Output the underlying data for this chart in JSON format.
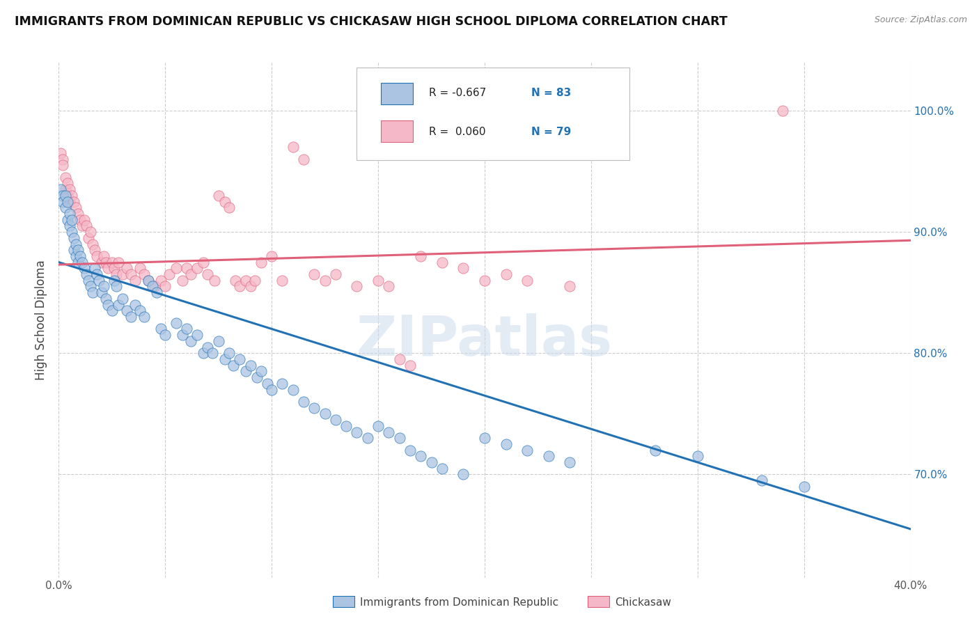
{
  "title": "IMMIGRANTS FROM DOMINICAN REPUBLIC VS CHICKASAW HIGH SCHOOL DIPLOMA CORRELATION CHART",
  "source": "Source: ZipAtlas.com",
  "ylabel": "High School Diploma",
  "ytick_labels": [
    "100.0%",
    "90.0%",
    "80.0%",
    "70.0%"
  ],
  "ytick_values": [
    1.0,
    0.9,
    0.8,
    0.7
  ],
  "xlim": [
    0.0,
    0.4
  ],
  "ylim": [
    0.615,
    1.04
  ],
  "blue_color": "#aac4e2",
  "pink_color": "#f5b8c8",
  "blue_line_color": "#2171b5",
  "pink_line_color": "#e0607a",
  "watermark": "ZIPatlas",
  "legend_label_blue": "Immigrants from Dominican Republic",
  "legend_label_pink": "Chickasaw",
  "blue_scatter": [
    [
      0.001,
      0.935
    ],
    [
      0.002,
      0.93
    ],
    [
      0.002,
      0.925
    ],
    [
      0.003,
      0.93
    ],
    [
      0.003,
      0.92
    ],
    [
      0.004,
      0.925
    ],
    [
      0.004,
      0.91
    ],
    [
      0.005,
      0.915
    ],
    [
      0.005,
      0.905
    ],
    [
      0.006,
      0.91
    ],
    [
      0.006,
      0.9
    ],
    [
      0.007,
      0.895
    ],
    [
      0.007,
      0.885
    ],
    [
      0.008,
      0.89
    ],
    [
      0.008,
      0.88
    ],
    [
      0.009,
      0.885
    ],
    [
      0.009,
      0.875
    ],
    [
      0.01,
      0.88
    ],
    [
      0.011,
      0.875
    ],
    [
      0.012,
      0.87
    ],
    [
      0.013,
      0.865
    ],
    [
      0.014,
      0.86
    ],
    [
      0.015,
      0.855
    ],
    [
      0.016,
      0.85
    ],
    [
      0.017,
      0.87
    ],
    [
      0.018,
      0.865
    ],
    [
      0.019,
      0.86
    ],
    [
      0.02,
      0.85
    ],
    [
      0.021,
      0.855
    ],
    [
      0.022,
      0.845
    ],
    [
      0.023,
      0.84
    ],
    [
      0.025,
      0.835
    ],
    [
      0.026,
      0.86
    ],
    [
      0.027,
      0.855
    ],
    [
      0.028,
      0.84
    ],
    [
      0.03,
      0.845
    ],
    [
      0.032,
      0.835
    ],
    [
      0.034,
      0.83
    ],
    [
      0.036,
      0.84
    ],
    [
      0.038,
      0.835
    ],
    [
      0.04,
      0.83
    ],
    [
      0.042,
      0.86
    ],
    [
      0.044,
      0.855
    ],
    [
      0.046,
      0.85
    ],
    [
      0.048,
      0.82
    ],
    [
      0.05,
      0.815
    ],
    [
      0.055,
      0.825
    ],
    [
      0.058,
      0.815
    ],
    [
      0.06,
      0.82
    ],
    [
      0.062,
      0.81
    ],
    [
      0.065,
      0.815
    ],
    [
      0.068,
      0.8
    ],
    [
      0.07,
      0.805
    ],
    [
      0.072,
      0.8
    ],
    [
      0.075,
      0.81
    ],
    [
      0.078,
      0.795
    ],
    [
      0.08,
      0.8
    ],
    [
      0.082,
      0.79
    ],
    [
      0.085,
      0.795
    ],
    [
      0.088,
      0.785
    ],
    [
      0.09,
      0.79
    ],
    [
      0.093,
      0.78
    ],
    [
      0.095,
      0.785
    ],
    [
      0.098,
      0.775
    ],
    [
      0.1,
      0.77
    ],
    [
      0.105,
      0.775
    ],
    [
      0.11,
      0.77
    ],
    [
      0.115,
      0.76
    ],
    [
      0.12,
      0.755
    ],
    [
      0.125,
      0.75
    ],
    [
      0.13,
      0.745
    ],
    [
      0.135,
      0.74
    ],
    [
      0.14,
      0.735
    ],
    [
      0.145,
      0.73
    ],
    [
      0.15,
      0.74
    ],
    [
      0.155,
      0.735
    ],
    [
      0.16,
      0.73
    ],
    [
      0.165,
      0.72
    ],
    [
      0.17,
      0.715
    ],
    [
      0.175,
      0.71
    ],
    [
      0.18,
      0.705
    ],
    [
      0.19,
      0.7
    ],
    [
      0.2,
      0.73
    ],
    [
      0.21,
      0.725
    ],
    [
      0.22,
      0.72
    ],
    [
      0.23,
      0.715
    ],
    [
      0.24,
      0.71
    ],
    [
      0.28,
      0.72
    ],
    [
      0.3,
      0.715
    ],
    [
      0.33,
      0.695
    ],
    [
      0.35,
      0.69
    ]
  ],
  "pink_scatter": [
    [
      0.001,
      0.965
    ],
    [
      0.002,
      0.96
    ],
    [
      0.002,
      0.955
    ],
    [
      0.003,
      0.945
    ],
    [
      0.003,
      0.935
    ],
    [
      0.004,
      0.94
    ],
    [
      0.004,
      0.93
    ],
    [
      0.005,
      0.935
    ],
    [
      0.005,
      0.925
    ],
    [
      0.006,
      0.93
    ],
    [
      0.007,
      0.925
    ],
    [
      0.008,
      0.92
    ],
    [
      0.009,
      0.915
    ],
    [
      0.01,
      0.91
    ],
    [
      0.011,
      0.905
    ],
    [
      0.012,
      0.91
    ],
    [
      0.013,
      0.905
    ],
    [
      0.014,
      0.895
    ],
    [
      0.015,
      0.9
    ],
    [
      0.016,
      0.89
    ],
    [
      0.017,
      0.885
    ],
    [
      0.018,
      0.88
    ],
    [
      0.02,
      0.875
    ],
    [
      0.021,
      0.88
    ],
    [
      0.022,
      0.875
    ],
    [
      0.023,
      0.87
    ],
    [
      0.025,
      0.875
    ],
    [
      0.026,
      0.87
    ],
    [
      0.027,
      0.865
    ],
    [
      0.028,
      0.875
    ],
    [
      0.03,
      0.865
    ],
    [
      0.032,
      0.87
    ],
    [
      0.034,
      0.865
    ],
    [
      0.036,
      0.86
    ],
    [
      0.038,
      0.87
    ],
    [
      0.04,
      0.865
    ],
    [
      0.042,
      0.86
    ],
    [
      0.045,
      0.855
    ],
    [
      0.048,
      0.86
    ],
    [
      0.05,
      0.855
    ],
    [
      0.052,
      0.865
    ],
    [
      0.055,
      0.87
    ],
    [
      0.058,
      0.86
    ],
    [
      0.06,
      0.87
    ],
    [
      0.062,
      0.865
    ],
    [
      0.065,
      0.87
    ],
    [
      0.068,
      0.875
    ],
    [
      0.07,
      0.865
    ],
    [
      0.073,
      0.86
    ],
    [
      0.075,
      0.93
    ],
    [
      0.078,
      0.925
    ],
    [
      0.08,
      0.92
    ],
    [
      0.083,
      0.86
    ],
    [
      0.085,
      0.855
    ],
    [
      0.088,
      0.86
    ],
    [
      0.09,
      0.855
    ],
    [
      0.092,
      0.86
    ],
    [
      0.095,
      0.875
    ],
    [
      0.1,
      0.88
    ],
    [
      0.105,
      0.86
    ],
    [
      0.11,
      0.97
    ],
    [
      0.115,
      0.96
    ],
    [
      0.12,
      0.865
    ],
    [
      0.125,
      0.86
    ],
    [
      0.13,
      0.865
    ],
    [
      0.14,
      0.855
    ],
    [
      0.15,
      0.86
    ],
    [
      0.155,
      0.855
    ],
    [
      0.16,
      0.795
    ],
    [
      0.165,
      0.79
    ],
    [
      0.17,
      0.88
    ],
    [
      0.18,
      0.875
    ],
    [
      0.19,
      0.87
    ],
    [
      0.2,
      0.86
    ],
    [
      0.21,
      0.865
    ],
    [
      0.22,
      0.86
    ],
    [
      0.24,
      0.855
    ],
    [
      0.34,
      1.0
    ]
  ],
  "blue_trendline": [
    [
      0.0,
      0.875
    ],
    [
      0.4,
      0.655
    ]
  ],
  "pink_trendline": [
    [
      0.0,
      0.873
    ],
    [
      0.4,
      0.893
    ]
  ],
  "background_color": "#ffffff",
  "grid_color": "#cccccc"
}
